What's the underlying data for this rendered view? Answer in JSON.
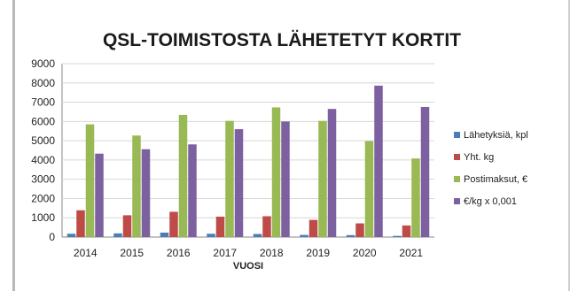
{
  "chart_data": {
    "type": "bar",
    "title": "QSL-TOIMISTOSTA LÄHETETYT KORTIT",
    "xlabel": "VUOSI",
    "ylabel": "",
    "categories": [
      "2014",
      "2015",
      "2016",
      "2017",
      "2018",
      "2019",
      "2020",
      "2021"
    ],
    "ylim": [
      0,
      9000
    ],
    "yticks": [
      0,
      1000,
      2000,
      3000,
      4000,
      5000,
      6000,
      7000,
      8000,
      9000
    ],
    "grid": true,
    "legend_position": "right",
    "series": [
      {
        "name": "Lähetyksiä, kpl",
        "color": "#4a7ebb",
        "values": [
          170,
          190,
          230,
          170,
          160,
          110,
          100,
          60
        ]
      },
      {
        "name": "Yht. kg",
        "color": "#be4b48",
        "values": [
          1390,
          1130,
          1310,
          1060,
          1080,
          890,
          710,
          600
        ]
      },
      {
        "name": "Postimaksut, €",
        "color": "#98b954",
        "values": [
          5850,
          5270,
          6340,
          6030,
          6730,
          6030,
          4980,
          4080
        ]
      },
      {
        "name": "€/kg x 0,001",
        "color": "#7d60a0",
        "values": [
          4330,
          4560,
          4810,
          5600,
          6000,
          6650,
          7860,
          6750
        ]
      }
    ]
  }
}
